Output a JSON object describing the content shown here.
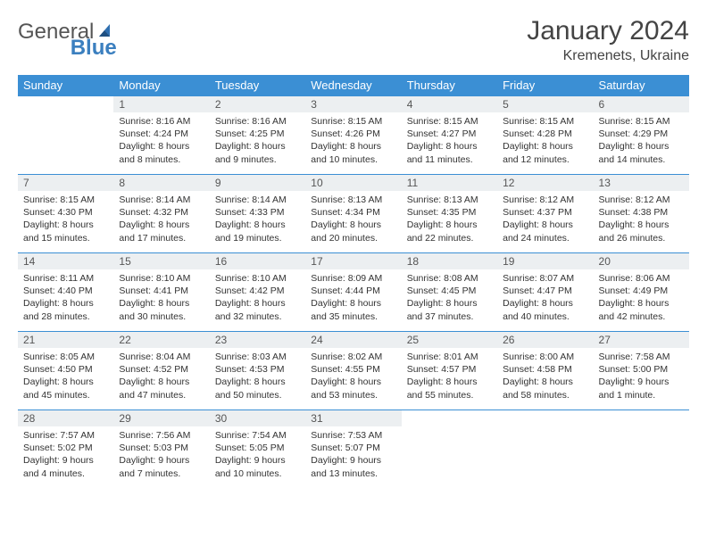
{
  "brand": {
    "part1": "General",
    "part2": "Blue"
  },
  "title": {
    "month": "January 2024",
    "location": "Kremenets, Ukraine"
  },
  "colors": {
    "header_bg": "#3b8fd4",
    "header_text": "#ffffff",
    "daynum_bg": "#eceff1",
    "row_border": "#3b8fd4",
    "body_text": "#333333",
    "brand_blue": "#3b7fbf"
  },
  "weekdays": [
    "Sunday",
    "Monday",
    "Tuesday",
    "Wednesday",
    "Thursday",
    "Friday",
    "Saturday"
  ],
  "weeks": [
    [
      {
        "n": "",
        "sr": "",
        "ss": "",
        "dl": ""
      },
      {
        "n": "1",
        "sr": "Sunrise: 8:16 AM",
        "ss": "Sunset: 4:24 PM",
        "dl": "Daylight: 8 hours and 8 minutes."
      },
      {
        "n": "2",
        "sr": "Sunrise: 8:16 AM",
        "ss": "Sunset: 4:25 PM",
        "dl": "Daylight: 8 hours and 9 minutes."
      },
      {
        "n": "3",
        "sr": "Sunrise: 8:15 AM",
        "ss": "Sunset: 4:26 PM",
        "dl": "Daylight: 8 hours and 10 minutes."
      },
      {
        "n": "4",
        "sr": "Sunrise: 8:15 AM",
        "ss": "Sunset: 4:27 PM",
        "dl": "Daylight: 8 hours and 11 minutes."
      },
      {
        "n": "5",
        "sr": "Sunrise: 8:15 AM",
        "ss": "Sunset: 4:28 PM",
        "dl": "Daylight: 8 hours and 12 minutes."
      },
      {
        "n": "6",
        "sr": "Sunrise: 8:15 AM",
        "ss": "Sunset: 4:29 PM",
        "dl": "Daylight: 8 hours and 14 minutes."
      }
    ],
    [
      {
        "n": "7",
        "sr": "Sunrise: 8:15 AM",
        "ss": "Sunset: 4:30 PM",
        "dl": "Daylight: 8 hours and 15 minutes."
      },
      {
        "n": "8",
        "sr": "Sunrise: 8:14 AM",
        "ss": "Sunset: 4:32 PM",
        "dl": "Daylight: 8 hours and 17 minutes."
      },
      {
        "n": "9",
        "sr": "Sunrise: 8:14 AM",
        "ss": "Sunset: 4:33 PM",
        "dl": "Daylight: 8 hours and 19 minutes."
      },
      {
        "n": "10",
        "sr": "Sunrise: 8:13 AM",
        "ss": "Sunset: 4:34 PM",
        "dl": "Daylight: 8 hours and 20 minutes."
      },
      {
        "n": "11",
        "sr": "Sunrise: 8:13 AM",
        "ss": "Sunset: 4:35 PM",
        "dl": "Daylight: 8 hours and 22 minutes."
      },
      {
        "n": "12",
        "sr": "Sunrise: 8:12 AM",
        "ss": "Sunset: 4:37 PM",
        "dl": "Daylight: 8 hours and 24 minutes."
      },
      {
        "n": "13",
        "sr": "Sunrise: 8:12 AM",
        "ss": "Sunset: 4:38 PM",
        "dl": "Daylight: 8 hours and 26 minutes."
      }
    ],
    [
      {
        "n": "14",
        "sr": "Sunrise: 8:11 AM",
        "ss": "Sunset: 4:40 PM",
        "dl": "Daylight: 8 hours and 28 minutes."
      },
      {
        "n": "15",
        "sr": "Sunrise: 8:10 AM",
        "ss": "Sunset: 4:41 PM",
        "dl": "Daylight: 8 hours and 30 minutes."
      },
      {
        "n": "16",
        "sr": "Sunrise: 8:10 AM",
        "ss": "Sunset: 4:42 PM",
        "dl": "Daylight: 8 hours and 32 minutes."
      },
      {
        "n": "17",
        "sr": "Sunrise: 8:09 AM",
        "ss": "Sunset: 4:44 PM",
        "dl": "Daylight: 8 hours and 35 minutes."
      },
      {
        "n": "18",
        "sr": "Sunrise: 8:08 AM",
        "ss": "Sunset: 4:45 PM",
        "dl": "Daylight: 8 hours and 37 minutes."
      },
      {
        "n": "19",
        "sr": "Sunrise: 8:07 AM",
        "ss": "Sunset: 4:47 PM",
        "dl": "Daylight: 8 hours and 40 minutes."
      },
      {
        "n": "20",
        "sr": "Sunrise: 8:06 AM",
        "ss": "Sunset: 4:49 PM",
        "dl": "Daylight: 8 hours and 42 minutes."
      }
    ],
    [
      {
        "n": "21",
        "sr": "Sunrise: 8:05 AM",
        "ss": "Sunset: 4:50 PM",
        "dl": "Daylight: 8 hours and 45 minutes."
      },
      {
        "n": "22",
        "sr": "Sunrise: 8:04 AM",
        "ss": "Sunset: 4:52 PM",
        "dl": "Daylight: 8 hours and 47 minutes."
      },
      {
        "n": "23",
        "sr": "Sunrise: 8:03 AM",
        "ss": "Sunset: 4:53 PM",
        "dl": "Daylight: 8 hours and 50 minutes."
      },
      {
        "n": "24",
        "sr": "Sunrise: 8:02 AM",
        "ss": "Sunset: 4:55 PM",
        "dl": "Daylight: 8 hours and 53 minutes."
      },
      {
        "n": "25",
        "sr": "Sunrise: 8:01 AM",
        "ss": "Sunset: 4:57 PM",
        "dl": "Daylight: 8 hours and 55 minutes."
      },
      {
        "n": "26",
        "sr": "Sunrise: 8:00 AM",
        "ss": "Sunset: 4:58 PM",
        "dl": "Daylight: 8 hours and 58 minutes."
      },
      {
        "n": "27",
        "sr": "Sunrise: 7:58 AM",
        "ss": "Sunset: 5:00 PM",
        "dl": "Daylight: 9 hours and 1 minute."
      }
    ],
    [
      {
        "n": "28",
        "sr": "Sunrise: 7:57 AM",
        "ss": "Sunset: 5:02 PM",
        "dl": "Daylight: 9 hours and 4 minutes."
      },
      {
        "n": "29",
        "sr": "Sunrise: 7:56 AM",
        "ss": "Sunset: 5:03 PM",
        "dl": "Daylight: 9 hours and 7 minutes."
      },
      {
        "n": "30",
        "sr": "Sunrise: 7:54 AM",
        "ss": "Sunset: 5:05 PM",
        "dl": "Daylight: 9 hours and 10 minutes."
      },
      {
        "n": "31",
        "sr": "Sunrise: 7:53 AM",
        "ss": "Sunset: 5:07 PM",
        "dl": "Daylight: 9 hours and 13 minutes."
      },
      {
        "n": "",
        "sr": "",
        "ss": "",
        "dl": ""
      },
      {
        "n": "",
        "sr": "",
        "ss": "",
        "dl": ""
      },
      {
        "n": "",
        "sr": "",
        "ss": "",
        "dl": ""
      }
    ]
  ]
}
